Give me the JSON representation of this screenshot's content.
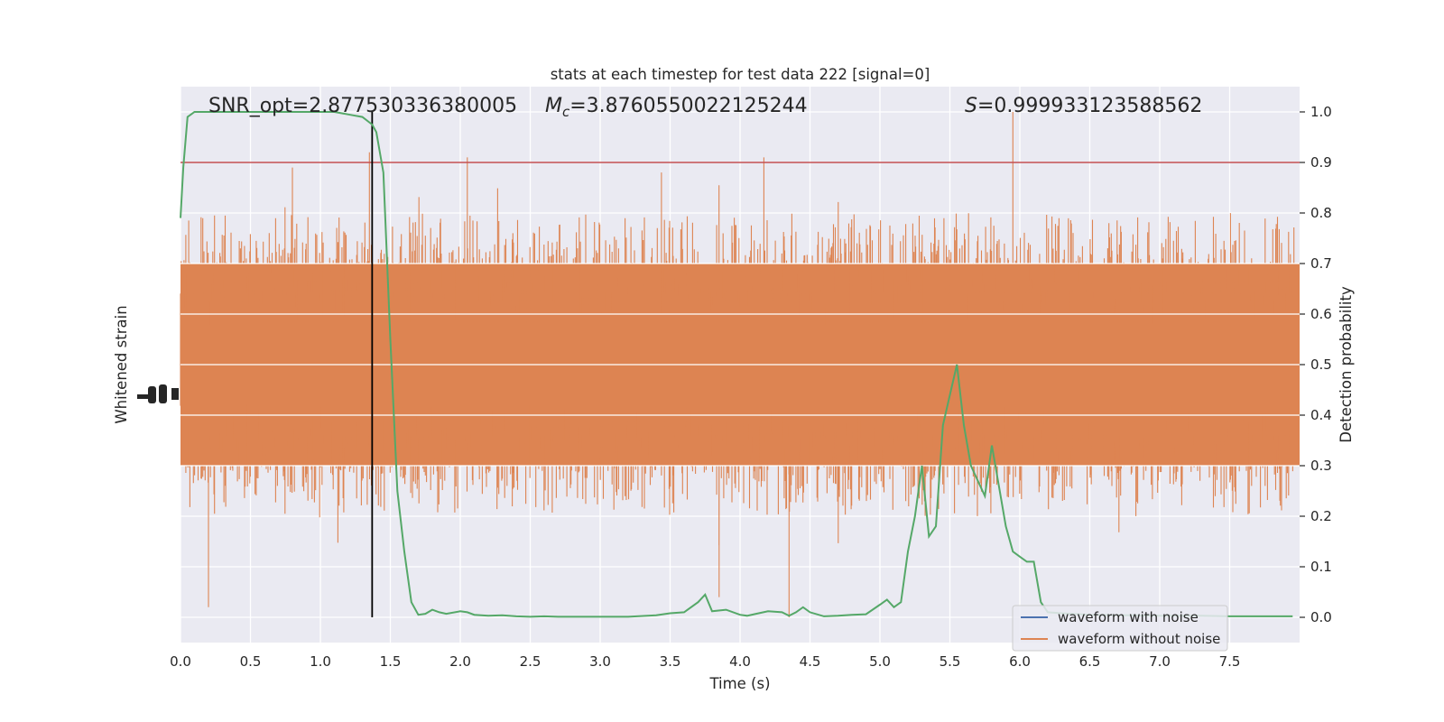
{
  "chart_data": {
    "type": "line",
    "title": "stats at each timestep for test data 222 [signal=0]",
    "xlabel": "Time (s)",
    "ylabel_left": "Whitened strain",
    "ylabel_right": "Detection probability",
    "xlim": [
      0.0,
      8.0
    ],
    "ylim_right": [
      -0.05,
      1.05
    ],
    "x_ticks": [
      "0.0",
      "0.5",
      "1.0",
      "1.5",
      "2.0",
      "2.5",
      "3.0",
      "3.5",
      "4.0",
      "4.5",
      "5.0",
      "5.5",
      "6.0",
      "6.5",
      "7.0",
      "7.5"
    ],
    "y_ticks_right": [
      "0.0",
      "0.1",
      "0.2",
      "0.3",
      "0.4",
      "0.5",
      "0.6",
      "0.7",
      "0.8",
      "0.9",
      "1.0"
    ],
    "grid": true,
    "legend_position": "lower-right",
    "annotations": {
      "snr": "SNR_opt=2.877530336380005",
      "mc_symbol": "M",
      "mc_sub": "c",
      "mc_value": "=3.8760550022125244",
      "s_symbol": "S",
      "s_value": "=0.999933123588562"
    },
    "threshold": 0.9,
    "threshold_color": "#c44e52",
    "vertical_marker_x": 1.37,
    "series": [
      {
        "name": "waveform with noise",
        "color": "#4c72b0",
        "kind": "strain"
      },
      {
        "name": "waveform without noise",
        "color": "#dd8452",
        "kind": "strain",
        "core_band_probability": [
          0.3,
          0.7
        ],
        "spike_range_probability": [
          0.0,
          1.0
        ]
      },
      {
        "name": "",
        "color": "#55a868",
        "kind": "probability",
        "x": [
          0.0,
          0.02,
          0.05,
          0.1,
          0.2,
          0.3,
          0.5,
          0.8,
          1.0,
          1.1,
          1.2,
          1.3,
          1.37,
          1.4,
          1.45,
          1.5,
          1.55,
          1.6,
          1.65,
          1.7,
          1.75,
          1.8,
          1.85,
          1.9,
          2.0,
          2.05,
          2.1,
          2.2,
          2.3,
          2.4,
          2.5,
          2.6,
          2.7,
          2.8,
          2.9,
          3.0,
          3.2,
          3.4,
          3.5,
          3.6,
          3.7,
          3.75,
          3.8,
          3.9,
          4.0,
          4.05,
          4.1,
          4.2,
          4.3,
          4.35,
          4.4,
          4.45,
          4.5,
          4.6,
          4.7,
          4.8,
          4.9,
          5.0,
          5.05,
          5.1,
          5.15,
          5.2,
          5.25,
          5.3,
          5.35,
          5.4,
          5.45,
          5.5,
          5.55,
          5.6,
          5.65,
          5.7,
          5.75,
          5.8,
          5.85,
          5.9,
          5.95,
          6.0,
          6.05,
          6.1,
          6.15,
          6.2,
          6.3,
          6.5,
          6.8,
          7.0,
          7.3,
          7.5,
          7.7,
          7.95
        ],
        "values": [
          0.79,
          0.89,
          0.99,
          1.0,
          1.0,
          1.0,
          1.0,
          1.0,
          1.0,
          1.0,
          0.995,
          0.99,
          0.975,
          0.96,
          0.88,
          0.55,
          0.25,
          0.13,
          0.03,
          0.005,
          0.007,
          0.015,
          0.01,
          0.007,
          0.012,
          0.01,
          0.005,
          0.003,
          0.004,
          0.002,
          0.001,
          0.002,
          0.001,
          0.001,
          0.001,
          0.001,
          0.001,
          0.004,
          0.008,
          0.01,
          0.03,
          0.045,
          0.012,
          0.015,
          0.005,
          0.003,
          0.006,
          0.012,
          0.01,
          0.003,
          0.01,
          0.02,
          0.01,
          0.002,
          0.003,
          0.005,
          0.006,
          0.025,
          0.035,
          0.02,
          0.03,
          0.13,
          0.2,
          0.3,
          0.16,
          0.18,
          0.38,
          0.44,
          0.5,
          0.38,
          0.3,
          0.27,
          0.24,
          0.34,
          0.26,
          0.18,
          0.13,
          0.12,
          0.11,
          0.11,
          0.03,
          0.01,
          0.008,
          0.005,
          0.004,
          0.003,
          0.003,
          0.002,
          0.002,
          0.002
        ]
      }
    ]
  }
}
